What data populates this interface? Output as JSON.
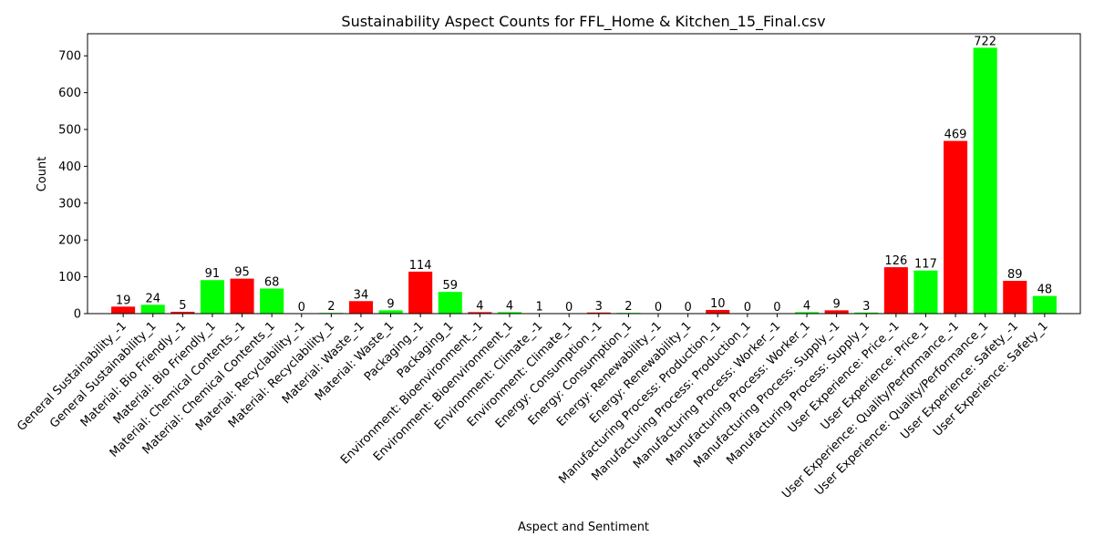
{
  "chart_data": {
    "type": "bar",
    "title": "Sustainability Aspect Counts for FFL_Home & Kitchen_15_Final.csv",
    "xlabel": "Aspect and Sentiment",
    "ylabel": "Count",
    "ylim": [
      0,
      760
    ],
    "yticks": [
      0,
      100,
      200,
      300,
      400,
      500,
      600,
      700
    ],
    "grid": false,
    "colors": {
      "negative": "#ff0000",
      "positive": "#00ff00"
    },
    "categories": [
      "General Sustainability_-1",
      "General Sustainability_1",
      "Material: Bio Friendly_-1",
      "Material: Bio Friendly_1",
      "Material: Chemical Contents_-1",
      "Material: Chemical Contents_1",
      "Material: Recyclability_-1",
      "Material: Recyclability_1",
      "Material: Waste_-1",
      "Material: Waste_1",
      "Packaging_-1",
      "Packaging_1",
      "Environment: Bioenvironment_-1",
      "Environment: Bioenvironment_1",
      "Environment: Climate_-1",
      "Environment: Climate_1",
      "Energy: Consumption_-1",
      "Energy: Consumption_1",
      "Energy: Renewability_-1",
      "Energy: Renewability_1",
      "Manufacturing Process: Production_-1",
      "Manufacturing Process: Production_1",
      "Manufacturing Process: Worker_-1",
      "Manufacturing Process: Worker_1",
      "Manufacturing Process: Supply_-1",
      "Manufacturing Process: Supply_1",
      "User Experience: Price_-1",
      "User Experience: Price_1",
      "User Experience: Quality/Performance_-1",
      "User Experience: Quality/Performance_1",
      "User Experience: Safety_-1",
      "User Experience: Safety_1"
    ],
    "values": [
      19,
      24,
      5,
      91,
      95,
      68,
      0,
      2,
      34,
      9,
      114,
      59,
      4,
      4,
      1,
      0,
      3,
      2,
      0,
      0,
      10,
      0,
      0,
      4,
      9,
      3,
      126,
      117,
      469,
      722,
      89,
      48
    ],
    "sentiment": [
      "negative",
      "positive",
      "negative",
      "positive",
      "negative",
      "positive",
      "negative",
      "positive",
      "negative",
      "positive",
      "negative",
      "positive",
      "negative",
      "positive",
      "negative",
      "positive",
      "negative",
      "positive",
      "negative",
      "positive",
      "negative",
      "positive",
      "negative",
      "positive",
      "negative",
      "positive",
      "negative",
      "positive",
      "negative",
      "positive",
      "negative",
      "positive"
    ]
  }
}
